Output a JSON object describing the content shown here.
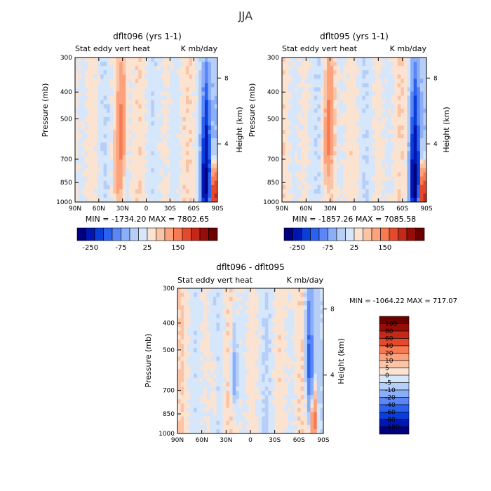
{
  "figure": {
    "title": "JJA"
  },
  "chart_data": [
    {
      "type": "heatmap",
      "title": "dflt096 (yrs 1-1)",
      "subtitle_left": "Stat eddy vert heat",
      "subtitle_right": "K mb/day",
      "ylabel": "Pressure (mb)",
      "ylabel_right": "Height (km)",
      "x_ticks": [
        "90N",
        "60N",
        "30N",
        "0",
        "30S",
        "60S",
        "90S"
      ],
      "y_ticks": [
        "300",
        "400",
        "500",
        "700",
        "850",
        "1000"
      ],
      "y_right_ticks": [
        "8",
        "4"
      ],
      "minmax": "MIN = -1734.20   MAX = 7802.65",
      "colorbar_labels": [
        "-250",
        "-75",
        "25",
        "150"
      ],
      "features": [
        {
          "x": 33,
          "p": 600,
          "v": 35
        },
        {
          "x": 30,
          "p": 450,
          "v": 30
        },
        {
          "x": 35,
          "p": 780,
          "v": 25
        },
        {
          "x": -75,
          "p": 880,
          "v": -250
        },
        {
          "x": -75,
          "p": 550,
          "v": -100
        },
        {
          "x": -86,
          "p": 930,
          "v": 150
        }
      ]
    },
    {
      "type": "heatmap",
      "title": "dflt095 (yrs 1-1)",
      "subtitle_left": "Stat eddy vert heat",
      "subtitle_right": "K mb/day",
      "ylabel": "Pressure (mb)",
      "ylabel_right": "Height (km)",
      "x_ticks": [
        "90N",
        "60N",
        "30N",
        "0",
        "30S",
        "60S",
        "90S"
      ],
      "y_ticks": [
        "300",
        "400",
        "500",
        "700",
        "850",
        "1000"
      ],
      "y_right_ticks": [
        "8",
        "4"
      ],
      "minmax": "MIN = -1857.26   MAX = 7085.58",
      "colorbar_labels": [
        "-250",
        "-75",
        "25",
        "150"
      ],
      "features": [
        {
          "x": 33,
          "p": 620,
          "v": 35
        },
        {
          "x": 30,
          "p": 460,
          "v": 30
        },
        {
          "x": -75,
          "p": 880,
          "v": -250
        },
        {
          "x": -75,
          "p": 560,
          "v": -100
        },
        {
          "x": -86,
          "p": 930,
          "v": 150
        }
      ]
    },
    {
      "type": "heatmap",
      "title": "dflt096 - dflt095",
      "subtitle_left": "Stat eddy vert heat",
      "subtitle_right": "K mb/day",
      "ylabel": "Pressure (mb)",
      "ylabel_right": "Height (km)",
      "x_ticks": [
        "90N",
        "60N",
        "30N",
        "0",
        "30S",
        "60S",
        "90S"
      ],
      "y_ticks": [
        "300",
        "400",
        "500",
        "700",
        "850",
        "1000"
      ],
      "y_right_ticks": [
        "8",
        "4"
      ],
      "minmax": "MIN = -1064.22   MAX = 717.07",
      "colorbar_labels": [
        "100",
        "80",
        "60",
        "40",
        "20",
        "10",
        "5",
        "0",
        "-5",
        "-10",
        "-20",
        "-40",
        "-60",
        "-80",
        "-100"
      ],
      "features": [
        {
          "x": -78,
          "p": 900,
          "v": 100
        },
        {
          "x": -74,
          "p": 700,
          "v": -60
        },
        {
          "x": 20,
          "p": 600,
          "v": -40
        },
        {
          "x": -72,
          "p": 450,
          "v": -60
        },
        {
          "x": 45,
          "p": 700,
          "v": 10
        }
      ]
    }
  ],
  "colors": {
    "diverging": [
      "#00007f",
      "#0016b3",
      "#0a3ed8",
      "#2a62ef",
      "#5a86f7",
      "#8baef9",
      "#b7cff7",
      "#d6e6fb",
      "#fbe3d2",
      "#fcc4a6",
      "#fca27c",
      "#f77a52",
      "#e4492c",
      "#c42818",
      "#960c06",
      "#6a0000"
    ]
  }
}
